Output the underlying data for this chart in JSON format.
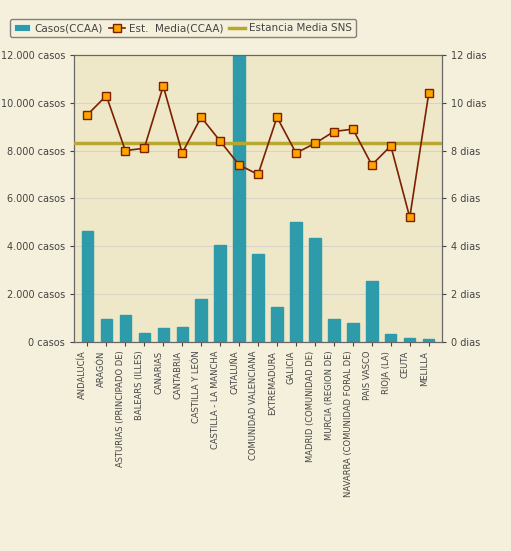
{
  "categories": [
    "ANDALUCÍA",
    "ARAGÓN",
    "ASTURIAS (PRINCIPADO DE)",
    "BALEARS (ILLES)",
    "CANARIAS",
    "CANTABRIA",
    "CASTILLA Y LEÓN",
    "CASTILLA - LA MANCHA",
    "CATALUÑA",
    "COMUNIDAD VALENCIANA",
    "EXTREMADURA",
    "GALICIA",
    "MADRID (COMUNIDAD DE)",
    "MURCIA (REGION DE)",
    "NAVARRA (COMUNIDAD FORAL DE)",
    "PAIS VASCO",
    "RIOJA (LA)",
    "CEUTA",
    "MELILLA"
  ],
  "bar_values": [
    4650,
    950,
    1100,
    350,
    550,
    600,
    1800,
    4050,
    12000,
    3650,
    1450,
    5000,
    4350,
    950,
    800,
    2550,
    300,
    150,
    100
  ],
  "line_values": [
    9.5,
    10.3,
    8.0,
    8.1,
    10.7,
    7.9,
    9.4,
    8.4,
    7.4,
    7.0,
    9.4,
    7.9,
    8.3,
    8.8,
    8.9,
    7.4,
    8.2,
    5.2,
    10.4
  ],
  "sns_line": 8.3,
  "bar_color": "#2E9BAA",
  "line_color": "#7B2000",
  "line_marker_facecolor": "#FFA500",
  "line_marker_edgecolor": "#7B2000",
  "sns_color": "#B8A830",
  "background_color": "#F5F0DC",
  "plot_bg_color": "#EEE8C8",
  "left_ylim": [
    0,
    12000
  ],
  "right_ylim": [
    0,
    12
  ],
  "left_yticks": [
    0,
    2000,
    4000,
    6000,
    8000,
    10000,
    12000
  ],
  "left_yticklabels": [
    "0 casos",
    "2.000 casos",
    "4.000 casos",
    "6.000 casos",
    "8.000 casos",
    "10.000 casos",
    "12.000 casos"
  ],
  "right_yticks": [
    0,
    2,
    4,
    6,
    8,
    10,
    12
  ],
  "right_yticklabels": [
    "0 dias",
    "2 dias",
    "4 dias",
    "6 dias",
    "8 dias",
    "10 dias",
    "12 dias"
  ],
  "legend_bar_label": "Casos(CCAA)",
  "legend_line_label": "Est.  Media(CCAA)",
  "legend_sns_label": "Estancia Media SNS",
  "spine_color": "#666666",
  "tick_color": "#444444"
}
